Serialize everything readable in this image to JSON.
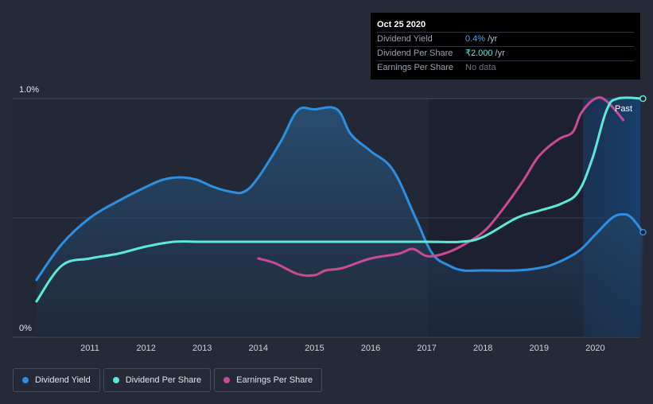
{
  "chart_data": {
    "type": "line",
    "title": "",
    "xlabel": "",
    "ylabel": "",
    "x_ticks": [
      "2011",
      "2012",
      "2013",
      "2014",
      "2015",
      "2016",
      "2017",
      "2018",
      "2019",
      "2020"
    ],
    "xlim": [
      2010.0,
      2020.85
    ],
    "ylim": [
      0,
      1.0
    ],
    "y_ticks": [
      {
        "value": 1.0,
        "label": "1.0%"
      },
      {
        "value": 0.0,
        "label": "0%"
      }
    ],
    "grid": true,
    "past_label": "Past",
    "series": [
      {
        "name": "Dividend Yield",
        "color": "#2d8fe0",
        "fill": true,
        "x": [
          2010.05,
          2010.5,
          2011.0,
          2011.5,
          2012.0,
          2012.3,
          2012.6,
          2012.9,
          2013.2,
          2013.5,
          2013.75,
          2014.0,
          2014.4,
          2014.7,
          2015.0,
          2015.4,
          2015.65,
          2016.0,
          2016.4,
          2016.8,
          2017.1,
          2017.4,
          2017.65,
          2018.0,
          2018.6,
          2019.0,
          2019.3,
          2019.7,
          2020.0,
          2020.3,
          2020.5,
          2020.65,
          2020.85
        ],
        "values": [
          0.24,
          0.39,
          0.5,
          0.57,
          0.63,
          0.66,
          0.67,
          0.66,
          0.63,
          0.61,
          0.61,
          0.67,
          0.82,
          0.95,
          0.955,
          0.955,
          0.85,
          0.78,
          0.7,
          0.5,
          0.35,
          0.3,
          0.28,
          0.28,
          0.28,
          0.29,
          0.31,
          0.36,
          0.43,
          0.5,
          0.515,
          0.5,
          0.44
        ]
      },
      {
        "name": "Dividend Per Share",
        "color": "#5ee8d8",
        "fill": false,
        "x": [
          2010.05,
          2010.5,
          2011.0,
          2011.5,
          2012.0,
          2012.5,
          2013.0,
          2014.0,
          2015.0,
          2016.0,
          2017.0,
          2017.6,
          2018.0,
          2018.6,
          2019.0,
          2019.4,
          2019.7,
          2019.95,
          2020.2,
          2020.4,
          2020.85
        ],
        "values": [
          0.15,
          0.3,
          0.33,
          0.35,
          0.38,
          0.4,
          0.4,
          0.4,
          0.4,
          0.4,
          0.4,
          0.4,
          0.42,
          0.5,
          0.53,
          0.56,
          0.61,
          0.75,
          0.95,
          1.0,
          1.0
        ]
      },
      {
        "name": "Earnings Per Share",
        "color": "#c94a95",
        "fill": false,
        "x": [
          2014.0,
          2014.3,
          2014.7,
          2015.0,
          2015.2,
          2015.5,
          2016.0,
          2016.5,
          2016.75,
          2017.0,
          2017.3,
          2017.6,
          2018.0,
          2018.3,
          2018.7,
          2019.0,
          2019.35,
          2019.6,
          2019.75,
          2020.0,
          2020.2,
          2020.5
        ],
        "values": [
          0.33,
          0.31,
          0.265,
          0.26,
          0.28,
          0.29,
          0.33,
          0.35,
          0.37,
          0.34,
          0.35,
          0.38,
          0.44,
          0.52,
          0.65,
          0.76,
          0.83,
          0.86,
          0.94,
          1.0,
          0.99,
          0.91
        ]
      }
    ]
  },
  "tooltip": {
    "date": "Oct 25 2020",
    "rows": [
      {
        "label": "Dividend Yield",
        "value": "0.4%",
        "unit": "/yr"
      },
      {
        "label": "Dividend Per Share",
        "value": "₹2.000",
        "unit": "/yr"
      },
      {
        "label": "Earnings Per Share",
        "value": "No data",
        "unit": ""
      }
    ]
  },
  "legend": [
    {
      "label": "Dividend Yield",
      "color": "#2d8fe0"
    },
    {
      "label": "Dividend Per Share",
      "color": "#5ee8d8"
    },
    {
      "label": "Earnings Per Share",
      "color": "#c94a95"
    }
  ]
}
